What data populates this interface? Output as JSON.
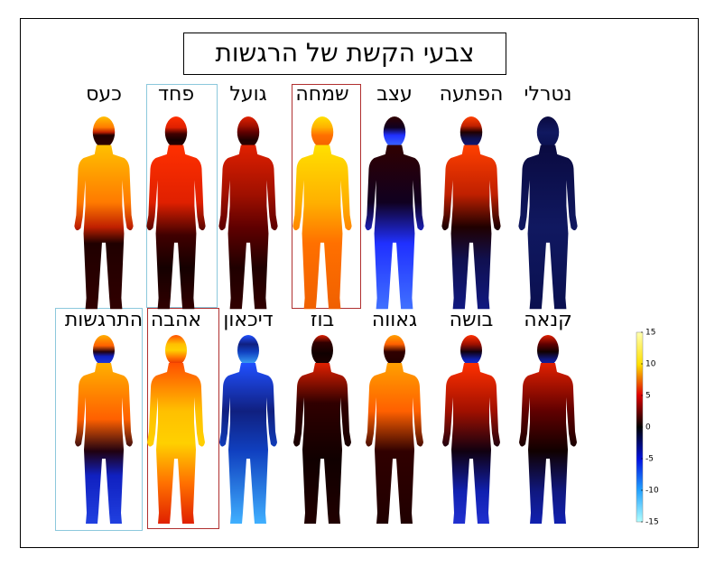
{
  "title": "צבעי הקשת של הרגשות",
  "figures": {
    "rows": [
      [
        "כעס",
        "פחד",
        "גועל",
        "שמחה",
        "עצב",
        "הפתעה",
        "נטרלי"
      ],
      [
        "התרגשות",
        "אהבה",
        "דיכאון",
        "בוז",
        "גאווה",
        "בושה",
        "קנאה"
      ]
    ]
  },
  "colorbar": {
    "lim": [
      -15,
      15
    ],
    "ticks": [
      15,
      10,
      5,
      0,
      -5,
      -10,
      -15
    ]
  }
}
